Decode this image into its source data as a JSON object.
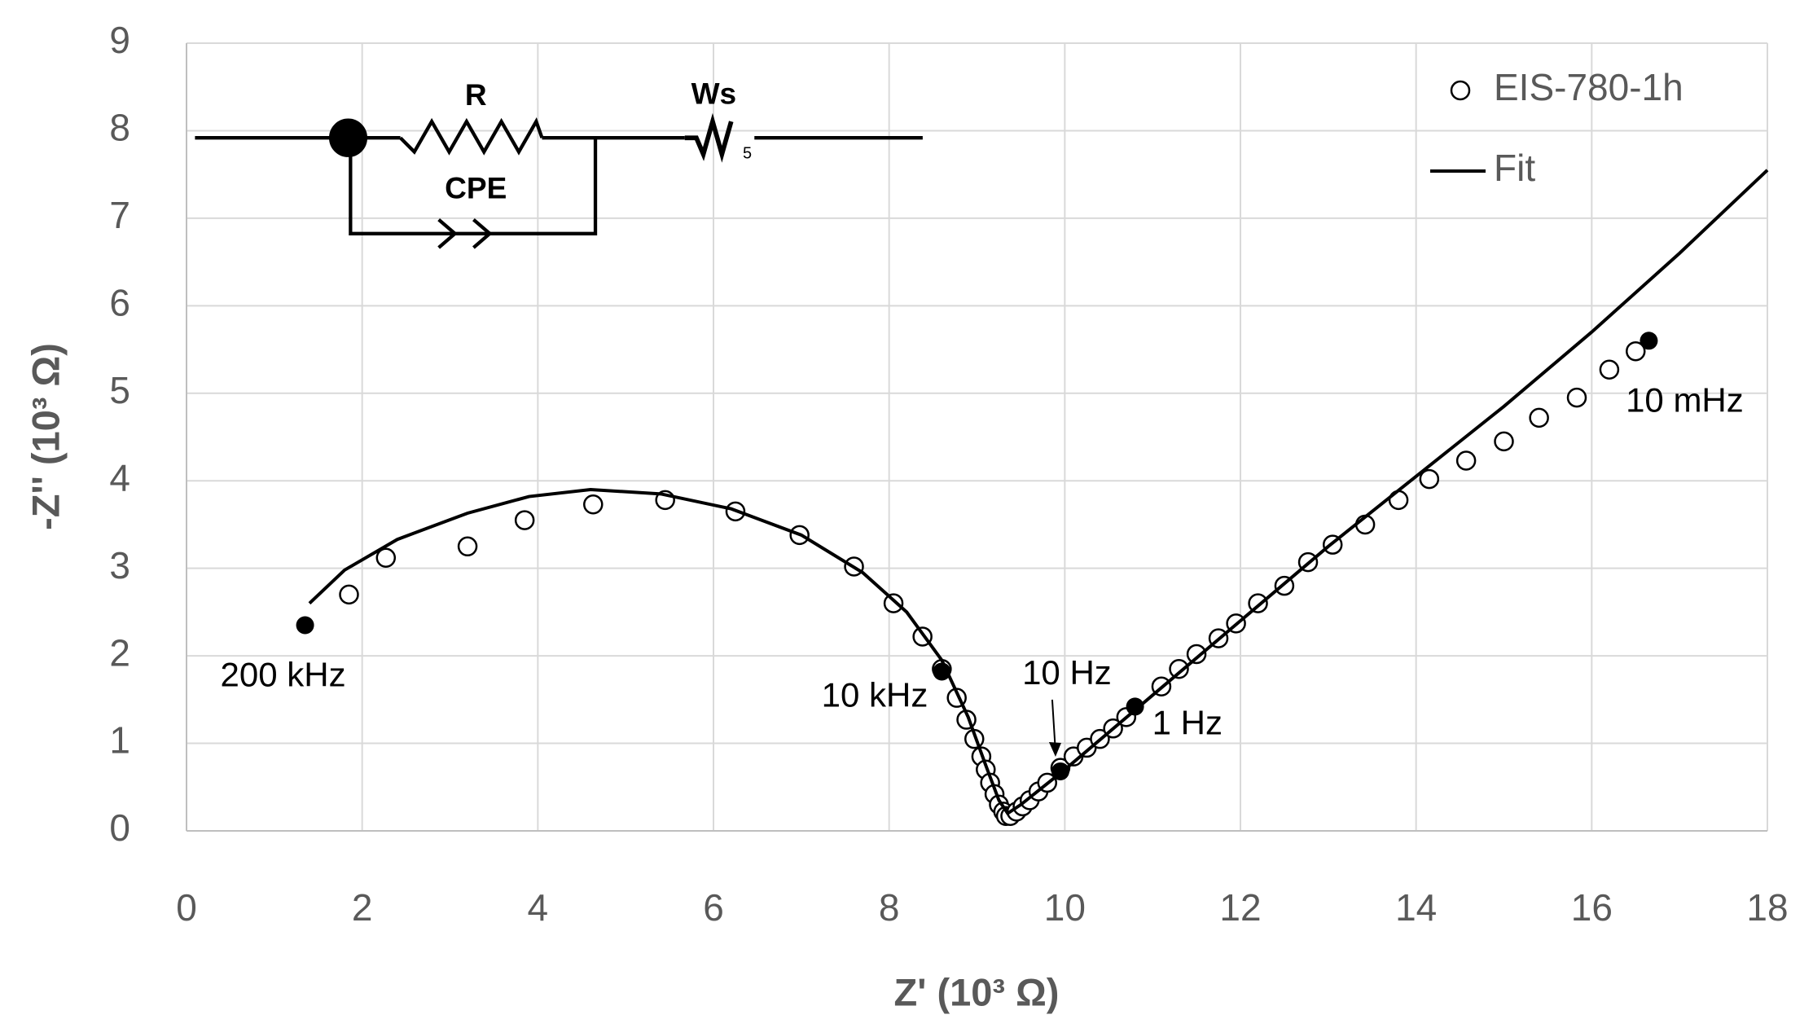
{
  "chart_data": {
    "type": "scatter",
    "x_label": "Z' (10³ Ω)",
    "y_label": "-Z'' (10³ Ω)",
    "xlim": [
      0,
      18
    ],
    "xticks": [
      0,
      2,
      4,
      6,
      8,
      10,
      12,
      14,
      16,
      18
    ],
    "ylim": [
      0,
      9
    ],
    "yticks": [
      0,
      1,
      2,
      3,
      4,
      5,
      6,
      7,
      8,
      9
    ],
    "grid": true,
    "legend": "upper right",
    "series": [
      {
        "name": "EIS-780-1h",
        "color": "#000000",
        "marker": "open-circle",
        "x": [
          1.85,
          2.27,
          3.2,
          3.85,
          4.63,
          5.45,
          6.25,
          6.98,
          7.6,
          8.05,
          8.38,
          8.6,
          8.77,
          8.88,
          8.97,
          9.05,
          9.1,
          9.15,
          9.2,
          9.25,
          9.3,
          9.33,
          9.38,
          9.45,
          9.52,
          9.6,
          9.7,
          9.8,
          9.95,
          10.1,
          10.25,
          10.4,
          10.55,
          10.7,
          11.1,
          11.3,
          11.5,
          11.75,
          11.95,
          12.2,
          12.5,
          12.77,
          13.05,
          13.42,
          13.8,
          14.15,
          14.57,
          15.0,
          15.4,
          15.83,
          16.2,
          16.5
        ],
        "values": [
          2.7,
          3.12,
          3.25,
          3.55,
          3.73,
          3.78,
          3.65,
          3.38,
          3.02,
          2.6,
          2.22,
          1.85,
          1.52,
          1.27,
          1.05,
          0.85,
          0.7,
          0.55,
          0.42,
          0.3,
          0.22,
          0.17,
          0.17,
          0.22,
          0.28,
          0.35,
          0.45,
          0.55,
          0.72,
          0.85,
          0.95,
          1.05,
          1.17,
          1.3,
          1.65,
          1.85,
          2.02,
          2.2,
          2.37,
          2.6,
          2.8,
          3.07,
          3.27,
          3.5,
          3.78,
          4.02,
          4.23,
          4.45,
          4.72,
          4.95,
          5.27,
          5.48
        ]
      },
      {
        "name": "Fit",
        "color": "#000000",
        "marker": "line",
        "x": [
          1.4,
          1.8,
          2.4,
          3.2,
          3.9,
          4.6,
          5.4,
          6.2,
          7.0,
          7.7,
          8.2,
          8.6,
          8.9,
          9.1,
          9.25,
          9.35,
          9.5,
          10.0,
          11.0,
          12.0,
          13.0,
          14.0,
          15.0,
          16.0,
          17.0,
          18.0
        ],
        "values": [
          2.6,
          2.98,
          3.33,
          3.63,
          3.82,
          3.9,
          3.85,
          3.68,
          3.38,
          2.95,
          2.5,
          1.95,
          1.3,
          0.75,
          0.35,
          0.2,
          0.3,
          0.7,
          1.55,
          2.4,
          3.25,
          4.05,
          4.85,
          5.7,
          6.6,
          7.55
        ]
      }
    ],
    "highlights": {
      "color": "#000000",
      "x": [
        1.35,
        8.6,
        9.95,
        10.8,
        16.65
      ],
      "values": [
        2.35,
        1.82,
        0.68,
        1.42,
        5.6
      ],
      "labels": [
        "200 kHz",
        "10 kHz",
        "10 Hz",
        "1 Hz",
        "10 mHz"
      ]
    },
    "circuit": {
      "r": "R",
      "cpe": "CPE",
      "ws": "Ws",
      "ws_sub": "5"
    }
  }
}
